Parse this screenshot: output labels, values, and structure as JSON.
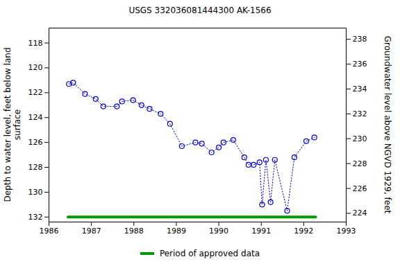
{
  "chart_data": {
    "type": "line",
    "title": "USGS 332036081444300 AK-1566",
    "y_label": "Depth to water level, feet below land surface",
    "y2_label": "Groundwater level above NGVD 1929, feet",
    "xlim": [
      1986,
      1993
    ],
    "xticks": [
      1986,
      1987,
      1988,
      1989,
      1990,
      1991,
      1992,
      1993
    ],
    "ylim": [
      132.4,
      116.8
    ],
    "yticks": [
      118,
      120,
      122,
      124,
      126,
      128,
      130,
      132
    ],
    "y2lim": [
      223.3,
      238.9
    ],
    "y2ticks": [
      224,
      226,
      228,
      230,
      232,
      234,
      236,
      238
    ],
    "grid": false,
    "legend": "bottom",
    "series": [
      {
        "x": [
          1986.47,
          1986.57,
          1986.85,
          1987.1,
          1987.28,
          1987.6,
          1987.72,
          1987.98,
          1988.18,
          1988.37,
          1988.63,
          1988.85,
          1989.13,
          1989.45,
          1989.6,
          1989.83,
          1990.0,
          1990.11,
          1990.34,
          1990.6,
          1990.7,
          1990.82,
          1990.96,
          1991.02,
          1991.11,
          1991.22,
          1991.32,
          1991.61,
          1991.78,
          1992.06,
          1992.25
        ],
        "values": [
          121.3,
          121.2,
          122.1,
          122.5,
          123.1,
          123.1,
          122.7,
          122.6,
          123.0,
          123.3,
          123.7,
          124.5,
          126.3,
          126.0,
          126.1,
          126.8,
          126.4,
          126.0,
          125.8,
          127.2,
          127.8,
          127.8,
          127.6,
          131.0,
          127.4,
          130.8,
          127.4,
          131.5,
          127.2,
          125.9,
          125.6
        ],
        "color": "#0000cc",
        "marker": "circle",
        "line_style": "dotted"
      },
      {
        "name": "Period of approved data",
        "x": [
          1986.45,
          1992.28
        ],
        "values": [
          132.0,
          132.0
        ],
        "color": "#009900",
        "line_style": "solid"
      }
    ]
  }
}
